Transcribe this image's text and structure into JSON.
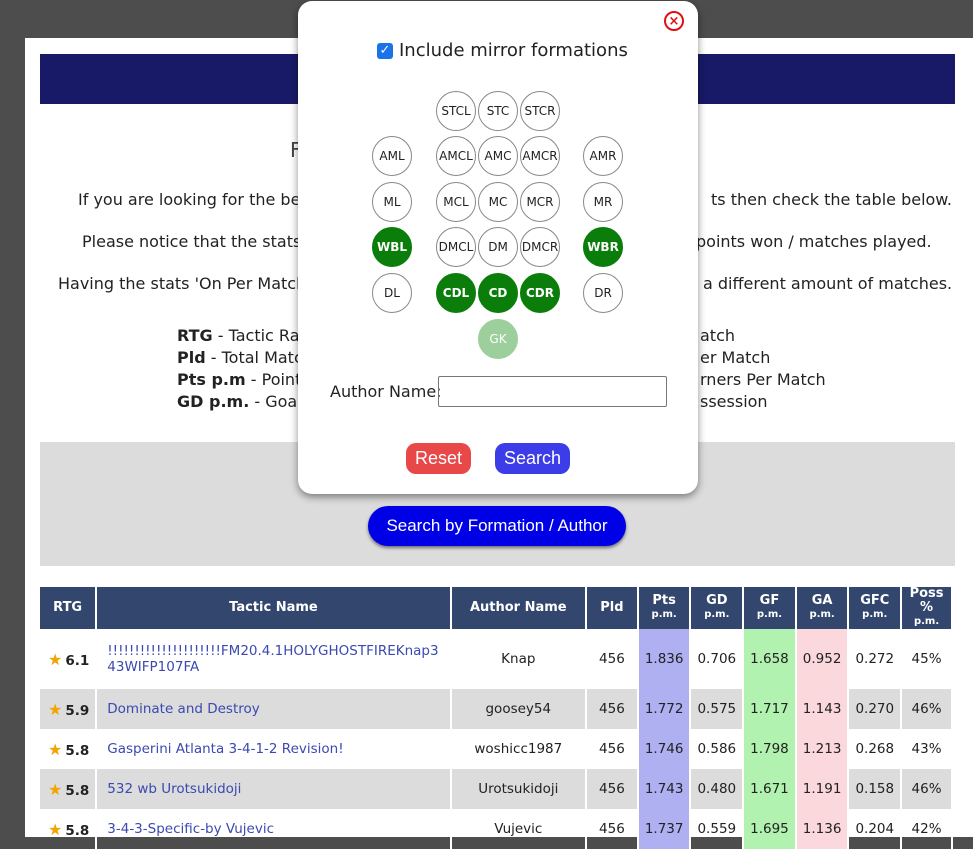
{
  "intro": {
    "title_left": "F",
    "title_right": "l",
    "lines": [
      {
        "left": "If you are looking for the best",
        "right": "ts then check the table below."
      },
      {
        "left": "Please notice that the stats be",
        "right": "points won / matches played."
      },
      {
        "left": "Having the stats 'On Per Match E",
        "right": "a different amount of matches."
      }
    ]
  },
  "legend": {
    "left": [
      {
        "abbr": "RTG",
        "text": " - Tactic Rati"
      },
      {
        "abbr": "Pld",
        "text": " - Total Match"
      },
      {
        "abbr": "Pts p.m",
        "text": " - Points"
      },
      {
        "abbr": "GD p.m.",
        "text": " - Goal D"
      }
    ],
    "right": [
      "atch",
      "er Match",
      "rners Per Match",
      "ssession"
    ]
  },
  "search_button": "Search by Formation / Author",
  "modal": {
    "close_symbol": "×",
    "mirror_label": "Include mirror formations",
    "mirror_checked": true,
    "positions": [
      {
        "label": "STCL",
        "selected": false
      },
      {
        "label": "STC",
        "selected": false
      },
      {
        "label": "STCR",
        "selected": false
      },
      {
        "label": "AML",
        "selected": false
      },
      {
        "label": "AMCL",
        "selected": false
      },
      {
        "label": "AMC",
        "selected": false
      },
      {
        "label": "AMCR",
        "selected": false
      },
      {
        "label": "AMR",
        "selected": false
      },
      {
        "label": "ML",
        "selected": false
      },
      {
        "label": "MCL",
        "selected": false
      },
      {
        "label": "MC",
        "selected": false
      },
      {
        "label": "MCR",
        "selected": false
      },
      {
        "label": "MR",
        "selected": false
      },
      {
        "label": "WBL",
        "selected": true
      },
      {
        "label": "DMCL",
        "selected": false
      },
      {
        "label": "DM",
        "selected": false
      },
      {
        "label": "DMCR",
        "selected": false
      },
      {
        "label": "WBR",
        "selected": true
      },
      {
        "label": "DL",
        "selected": false
      },
      {
        "label": "CDL",
        "selected": true
      },
      {
        "label": "CD",
        "selected": true
      },
      {
        "label": "CDR",
        "selected": true
      },
      {
        "label": "DR",
        "selected": false
      },
      {
        "label": "GK",
        "selected": true
      }
    ],
    "author_label": "Author Name:",
    "author_value": "",
    "reset_label": "Reset",
    "search_label": "Search"
  },
  "table": {
    "headers": [
      {
        "main": "RTG",
        "sub": ""
      },
      {
        "main": "Tactic Name",
        "sub": ""
      },
      {
        "main": "Author Name",
        "sub": ""
      },
      {
        "main": "Pld",
        "sub": ""
      },
      {
        "main": "Pts",
        "sub": "p.m."
      },
      {
        "main": "GD",
        "sub": "p.m."
      },
      {
        "main": "GF",
        "sub": "p.m."
      },
      {
        "main": "GA",
        "sub": "p.m."
      },
      {
        "main": "GFC",
        "sub": "p.m."
      },
      {
        "main": "Poss %",
        "sub": "p.m."
      }
    ],
    "rows": [
      {
        "rtg": "6.1",
        "name": "!!!!!!!!!!!!!!!!!!!!!FM20.4.1HOLYGHOSTFIREKnap343WIFP107FA",
        "author": "Knap",
        "pld": "456",
        "pts": "1.836",
        "gd": "0.706",
        "gf": "1.658",
        "ga": "0.952",
        "gfc": "0.272",
        "poss": "45%"
      },
      {
        "rtg": "5.9",
        "name": "Dominate and Destroy",
        "author": "goosey54",
        "pld": "456",
        "pts": "1.772",
        "gd": "0.575",
        "gf": "1.717",
        "ga": "1.143",
        "gfc": "0.270",
        "poss": "46%"
      },
      {
        "rtg": "5.8",
        "name": "Gasperini Atlanta 3-4-1-2 Revision!",
        "author": "woshicc1987",
        "pld": "456",
        "pts": "1.746",
        "gd": "0.586",
        "gf": "1.798",
        "ga": "1.213",
        "gfc": "0.268",
        "poss": "43%"
      },
      {
        "rtg": "5.8",
        "name": "532 wb Urotsukidoji",
        "author": "Urotsukidoji",
        "pld": "456",
        "pts": "1.743",
        "gd": "0.480",
        "gf": "1.671",
        "ga": "1.191",
        "gfc": "0.158",
        "poss": "46%"
      },
      {
        "rtg": "5.8",
        "name": "3-4-3-Specific-by Vujevic",
        "author": "Vujevic",
        "pld": "456",
        "pts": "1.737",
        "gd": "0.559",
        "gf": "1.695",
        "ga": "1.136",
        "gfc": "0.204",
        "poss": "42%"
      }
    ]
  },
  "colors": {
    "topbar": "#181a68",
    "table_header": "#33476e",
    "pts_cell": "#aeb0f2",
    "gf_cell": "#b2f2b0",
    "ga_cell": "#fad8dc",
    "position_selected": "#0a7d0a",
    "position_gk": "#9ccf9c",
    "reset_button": "#e84848",
    "search_button": "#3c3ce8",
    "main_search_button": "#0000e6"
  }
}
